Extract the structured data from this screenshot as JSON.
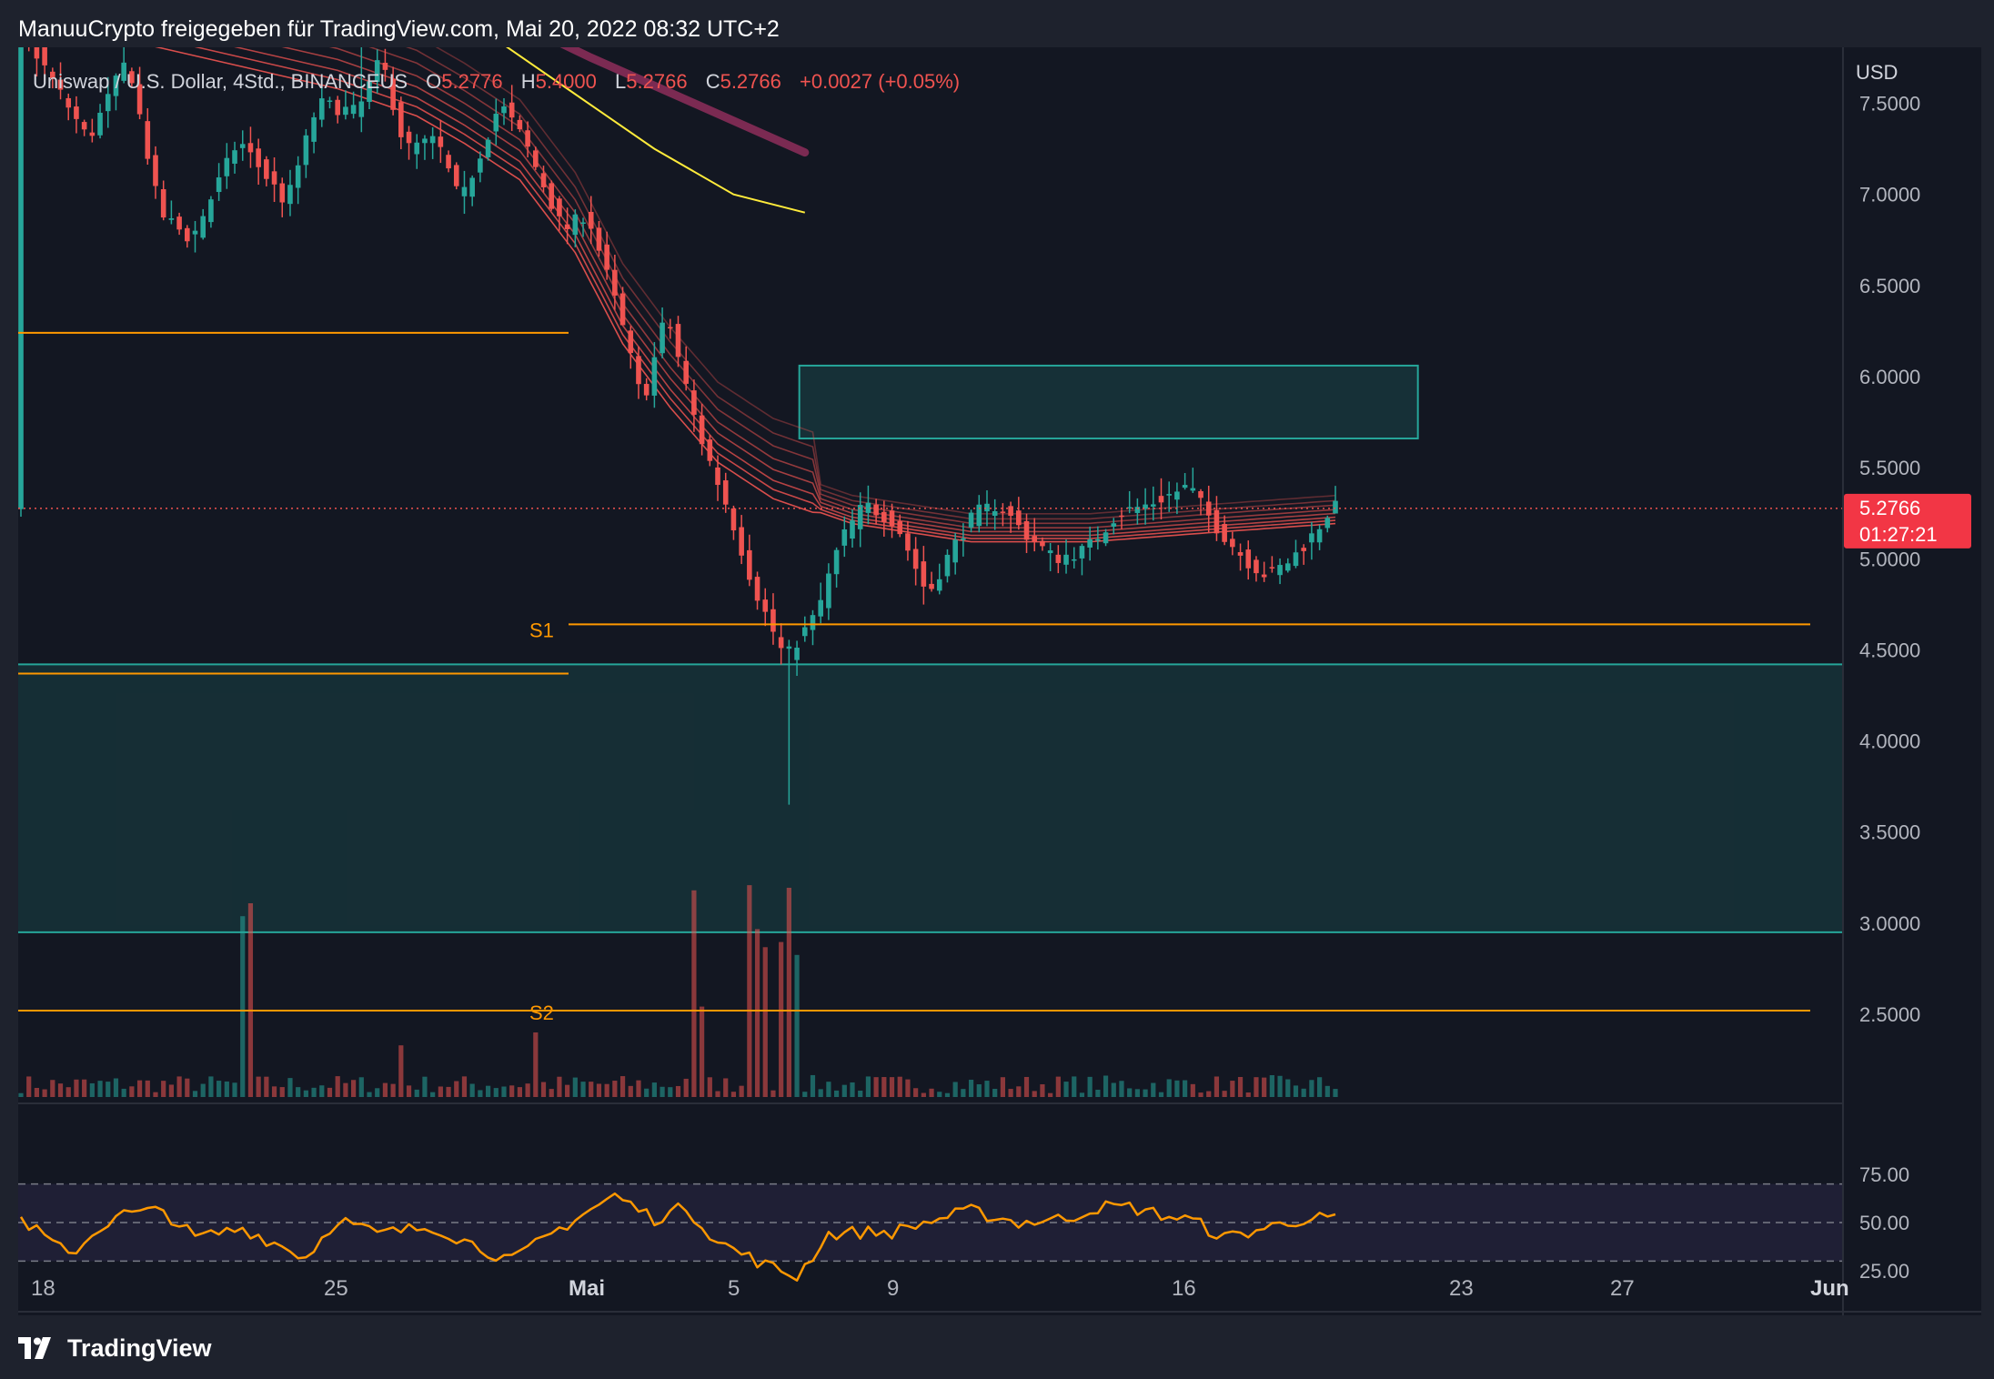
{
  "caption": "ManuuCrypto freigegeben für TradingView.com, Mai 20, 2022 08:32 UTC+2",
  "brand": "TradingView",
  "legend": {
    "symbol": "Uniswap / U.S. Dollar, 4Std., BINANCEUS",
    "open_label": "O",
    "open": "5.2776",
    "high_label": "H",
    "high": "5.4000",
    "low_label": "L",
    "low": "5.2766",
    "close_label": "C",
    "close": "5.2766",
    "change": "+0.0027 (+0.05%)"
  },
  "price_axis": {
    "currency": "USD",
    "ticks": [
      "7.5000",
      "7.0000",
      "6.5000",
      "6.0000",
      "5.5000",
      "5.0000",
      "4.5000",
      "4.0000",
      "3.5000",
      "3.0000",
      "2.5000"
    ],
    "last_price": "5.2766",
    "countdown": "01:27:21"
  },
  "rsi_axis": {
    "ticks": [
      "75.00",
      "50.00",
      "25.00"
    ]
  },
  "time_axis": {
    "ticks": [
      "18",
      "25",
      "Mai",
      "5",
      "9",
      "16",
      "23",
      "27",
      "Jun"
    ]
  },
  "levels": {
    "s1_label": "S1",
    "s2_label": "S2"
  },
  "colors": {
    "up": "#26a69a",
    "down": "#ef5350",
    "level": "#ff9800",
    "rsi": "#ff9800",
    "ema200": "#ffeb3b",
    "zone": "#26a69a"
  },
  "chart_data": [
    {
      "type": "candlestick",
      "symbol": "UNI/USD",
      "interval": "4h",
      "exchange": "BINANCEUS",
      "ylim": [
        2.2,
        8.0
      ],
      "x_ticks": [
        "18",
        "25",
        "Mai",
        "5",
        "9",
        "16",
        "23",
        "27",
        "Jun"
      ],
      "path": [
        [
          0,
          7.95
        ],
        [
          9,
          7.3
        ],
        [
          14,
          7.75
        ],
        [
          18,
          6.9
        ],
        [
          22,
          6.75
        ],
        [
          28,
          7.3
        ],
        [
          34,
          6.95
        ],
        [
          38,
          7.5
        ],
        [
          43,
          7.45
        ],
        [
          46,
          7.75
        ],
        [
          49,
          7.25
        ],
        [
          53,
          7.3
        ],
        [
          56,
          6.95
        ],
        [
          61,
          7.5
        ],
        [
          64,
          7.3
        ],
        [
          69,
          6.8
        ],
        [
          72,
          6.9
        ],
        [
          76,
          6.35
        ],
        [
          79,
          5.85
        ],
        [
          82,
          6.35
        ],
        [
          86,
          5.7
        ],
        [
          90,
          5.25
        ],
        [
          93,
          4.85
        ],
        [
          97,
          4.45
        ],
        [
          101,
          4.7
        ],
        [
          104,
          5.1
        ],
        [
          107,
          5.3
        ],
        [
          111,
          5.2
        ],
        [
          115,
          4.8
        ],
        [
          118,
          5.05
        ],
        [
          121,
          5.25
        ],
        [
          124,
          5.3
        ],
        [
          127,
          5.15
        ],
        [
          131,
          5.0
        ],
        [
          135,
          5.05
        ],
        [
          139,
          5.25
        ],
        [
          143,
          5.3
        ],
        [
          148,
          5.4
        ],
        [
          151,
          5.2
        ],
        [
          155,
          5.0
        ],
        [
          158,
          4.9
        ],
        [
          161,
          5.0
        ],
        [
          164,
          5.15
        ],
        [
          166,
          5.28
        ]
      ],
      "spikes": [
        [
          97,
          3.65,
          "low"
        ],
        [
          76,
          6.4,
          "low"
        ],
        [
          148,
          5.5,
          "high"
        ],
        [
          43,
          8.05,
          "high"
        ]
      ],
      "ema_ribbon": [
        [
          0,
          8.0
        ],
        [
          15,
          7.85
        ],
        [
          40,
          7.6
        ],
        [
          50,
          7.45
        ],
        [
          56,
          7.3
        ],
        [
          63,
          7.1
        ],
        [
          70,
          6.7
        ],
        [
          76,
          6.2
        ],
        [
          82,
          5.85
        ],
        [
          88,
          5.55
        ],
        [
          95,
          5.35
        ],
        [
          105,
          5.2
        ],
        [
          120,
          5.1
        ],
        [
          135,
          5.1
        ],
        [
          150,
          5.15
        ],
        [
          166,
          5.2
        ]
      ],
      "ema200": [
        [
          55,
          8.0
        ],
        [
          60,
          7.85
        ],
        [
          70,
          7.55
        ],
        [
          80,
          7.25
        ],
        [
          90,
          7.0
        ],
        [
          99,
          6.9
        ]
      ],
      "ema_upper": [
        [
          60,
          8.0
        ],
        [
          72,
          7.75
        ],
        [
          85,
          7.5
        ],
        [
          99,
          7.23
        ]
      ],
      "supply_zone": {
        "top": 6.06,
        "bottom": 5.66
      },
      "demand_zone": {
        "top": 4.42,
        "bottom": 2.95
      },
      "levels": [
        {
          "label": "S1",
          "price": 4.64
        },
        {
          "label": "S2",
          "price": 2.52
        },
        {
          "label": "",
          "price": 6.24
        },
        {
          "label": "",
          "price": 4.37
        }
      ],
      "last_price": 5.2766
    },
    {
      "type": "bar",
      "series": "volume",
      "spikes": [
        [
          28,
          0.7
        ],
        [
          29,
          0.75
        ],
        [
          48,
          0.2
        ],
        [
          65,
          0.25
        ],
        [
          85,
          0.8
        ],
        [
          86,
          0.35
        ],
        [
          92,
          0.82
        ],
        [
          93,
          0.65
        ],
        [
          94,
          0.58
        ],
        [
          96,
          0.6
        ],
        [
          97,
          0.81
        ],
        [
          98,
          0.55
        ]
      ]
    },
    {
      "type": "line",
      "series": "RSI",
      "ylim": [
        10,
        82
      ],
      "bands": [
        30,
        70
      ],
      "values": [
        [
          0,
          52
        ],
        [
          6,
          33
        ],
        [
          12,
          54
        ],
        [
          18,
          56
        ],
        [
          22,
          42
        ],
        [
          28,
          47
        ],
        [
          36,
          32
        ],
        [
          40,
          52
        ],
        [
          45,
          44
        ],
        [
          52,
          48
        ],
        [
          58,
          37
        ],
        [
          62,
          30
        ],
        [
          67,
          44
        ],
        [
          70,
          52
        ],
        [
          75,
          64
        ],
        [
          80,
          52
        ],
        [
          84,
          58
        ],
        [
          88,
          40
        ],
        [
          94,
          28
        ],
        [
          98,
          22
        ],
        [
          102,
          44
        ],
        [
          106,
          45
        ],
        [
          110,
          45
        ],
        [
          116,
          52
        ],
        [
          120,
          56
        ],
        [
          126,
          50
        ],
        [
          132,
          52
        ],
        [
          136,
          58
        ],
        [
          140,
          58
        ],
        [
          144,
          54
        ],
        [
          148,
          51
        ],
        [
          152,
          42
        ],
        [
          158,
          48
        ],
        [
          162,
          52
        ],
        [
          166,
          52
        ]
      ]
    }
  ]
}
